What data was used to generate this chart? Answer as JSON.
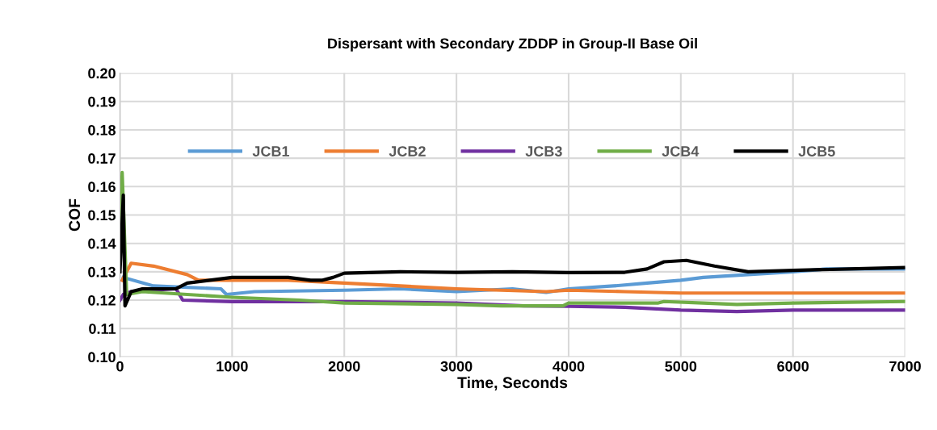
{
  "chart_data": {
    "type": "line",
    "title": "Dispersant with Secondary ZDDP in Group-II Base Oil",
    "xlabel": "Time, Seconds",
    "ylabel": "COF",
    "xlim": [
      0,
      7000
    ],
    "xticks": [
      0,
      1000,
      2000,
      3000,
      4000,
      5000,
      6000,
      7000
    ],
    "ylim": [
      0.1,
      0.2
    ],
    "yticks": [
      {
        "value": 0.1,
        "label": "0.10"
      },
      {
        "value": 0.11,
        "label": "0.11"
      },
      {
        "value": 0.12,
        "label": "0.12"
      },
      {
        "value": 0.13,
        "label": "0.13"
      },
      {
        "value": 0.14,
        "label": "0.14"
      },
      {
        "value": 0.15,
        "label": "0.15"
      },
      {
        "value": 0.16,
        "label": "0.16"
      },
      {
        "value": 0.17,
        "label": "0.17"
      },
      {
        "value": 0.18,
        "label": "0.18"
      },
      {
        "value": 0.19,
        "label": "0.19"
      },
      {
        "value": 0.2,
        "label": "0.20"
      }
    ],
    "grid": true,
    "legend": "center",
    "marker": "none",
    "line_style": "solid",
    "series": [
      {
        "name": "JCB1",
        "color": "#5b9bd5",
        "x": [
          30,
          300,
          900,
          950,
          1200,
          2000,
          2500,
          3000,
          3500,
          3800,
          4000,
          4400,
          4700,
          5000,
          5200,
          5600,
          6000,
          6300,
          7000
        ],
        "values": [
          0.128,
          0.125,
          0.124,
          0.122,
          0.123,
          0.1235,
          0.124,
          0.123,
          0.124,
          0.1227,
          0.124,
          0.125,
          0.126,
          0.127,
          0.128,
          0.129,
          0.13,
          0.131,
          0.131
        ]
      },
      {
        "name": "JCB2",
        "color": "#ed7d31",
        "x": [
          20,
          100,
          300,
          600,
          700,
          1500,
          2000,
          2500,
          3000,
          3800,
          4000,
          4500,
          5000,
          7000
        ],
        "values": [
          0.127,
          0.133,
          0.132,
          0.129,
          0.127,
          0.127,
          0.126,
          0.125,
          0.124,
          0.123,
          0.1235,
          0.123,
          0.1225,
          0.1225
        ]
      },
      {
        "name": "JCB3",
        "color": "#7030a0",
        "x": [
          0,
          30,
          100,
          500,
          560,
          1000,
          2000,
          3000,
          3300,
          3600,
          4000,
          4500,
          5000,
          5500,
          6000,
          7000
        ],
        "values": [
          0.12,
          0.122,
          0.123,
          0.124,
          0.12,
          0.1195,
          0.1195,
          0.119,
          0.1185,
          0.118,
          0.1178,
          0.1175,
          0.1165,
          0.116,
          0.1165,
          0.1165
        ]
      },
      {
        "name": "JCB4",
        "color": "#70ad47",
        "x": [
          0,
          20,
          60,
          200,
          600,
          1000,
          1600,
          2000,
          3000,
          3400,
          3950,
          4000,
          4800,
          4850,
          5200,
          5500,
          6000,
          7000
        ],
        "values": [
          0.14,
          0.165,
          0.122,
          0.123,
          0.122,
          0.121,
          0.12,
          0.119,
          0.1185,
          0.118,
          0.118,
          0.119,
          0.119,
          0.1195,
          0.119,
          0.1185,
          0.119,
          0.1195
        ]
      },
      {
        "name": "JCB5",
        "color": "#000000",
        "x": [
          0,
          30,
          45,
          100,
          200,
          500,
          600,
          800,
          1000,
          1500,
          1700,
          1800,
          1900,
          2000,
          2500,
          3000,
          3500,
          4000,
          4500,
          4700,
          4850,
          5050,
          5300,
          5600,
          6000,
          6500,
          7000
        ],
        "values": [
          0.13,
          0.157,
          0.118,
          0.123,
          0.124,
          0.124,
          0.126,
          0.127,
          0.128,
          0.128,
          0.127,
          0.127,
          0.128,
          0.1295,
          0.13,
          0.1298,
          0.13,
          0.1297,
          0.1298,
          0.131,
          0.1335,
          0.134,
          0.132,
          0.13,
          0.1305,
          0.131,
          0.1315
        ]
      }
    ]
  }
}
